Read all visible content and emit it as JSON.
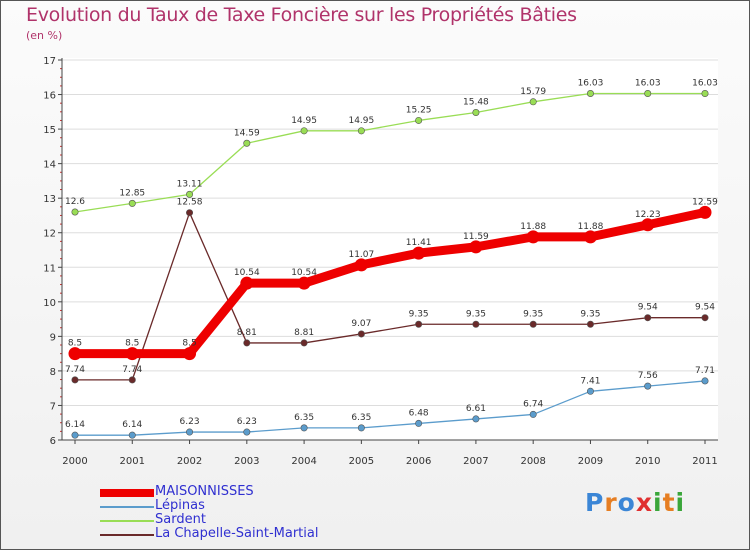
{
  "title": "Evolution du Taux de Taxe Foncière sur les Propriétés Bâties",
  "unit_label": "(en %)",
  "logo": {
    "text": "Proxiti",
    "colors": [
      "#3b86d6",
      "#e67e22",
      "#3b86d6",
      "#e03030",
      "#3aa63a",
      "#e67e22",
      "#3aa63a"
    ]
  },
  "chart_data": {
    "type": "line",
    "title": "Evolution du Taux de Taxe Foncière sur les Propriétés Bâties",
    "ylabel": "(en %)",
    "xlabel": "",
    "x": [
      "2000",
      "2001",
      "2002",
      "2003",
      "2004",
      "2005",
      "2006",
      "2007",
      "2008",
      "2009",
      "2010",
      "2011"
    ],
    "ylim": [
      6,
      17
    ],
    "yticks": [
      6,
      7,
      8,
      9,
      10,
      11,
      12,
      13,
      14,
      15,
      16,
      17
    ],
    "legend_position": "bottom-left",
    "series": [
      {
        "name": "MAISONNISSES",
        "color": "#ee0000",
        "values": [
          8.5,
          8.5,
          8.5,
          10.54,
          10.54,
          11.07,
          11.41,
          11.59,
          11.88,
          11.88,
          12.23,
          12.59
        ],
        "labels": [
          "8.5",
          "8.5",
          "8.5",
          "10.54",
          "10.54",
          "11.07",
          "11.41",
          "11.59",
          "11.88",
          "11.88",
          "12.23",
          "12.59"
        ]
      },
      {
        "name": "Lépinas",
        "color": "#5b9ccc",
        "values": [
          6.14,
          6.14,
          6.23,
          6.23,
          6.35,
          6.35,
          6.48,
          6.61,
          6.74,
          7.41,
          7.56,
          7.71
        ],
        "labels": [
          "6.14",
          "6.14",
          "6.23",
          "6.23",
          "6.35",
          "6.35",
          "6.48",
          "6.61",
          "6.74",
          "7.41",
          "7.56",
          "7.71"
        ]
      },
      {
        "name": "Sardent",
        "color": "#99dd55",
        "values": [
          12.6,
          12.85,
          13.11,
          14.59,
          14.95,
          14.95,
          15.25,
          15.48,
          15.79,
          16.03,
          16.03,
          16.03
        ],
        "labels": [
          "12.6",
          "12.85",
          "13.11",
          "14.59",
          "14.95",
          "14.95",
          "15.25",
          "15.48",
          "15.79",
          "16.03",
          "16.03",
          "16.03"
        ]
      },
      {
        "name": "La Chapelle-Saint-Martial",
        "color": "#6a2a2a",
        "values": [
          7.74,
          7.74,
          12.58,
          8.81,
          8.81,
          9.07,
          9.35,
          9.35,
          9.35,
          9.35,
          9.54,
          9.54
        ],
        "labels": [
          "7.74",
          "7.74",
          "12.58",
          "8.81",
          "8.81",
          "9.07",
          "9.35",
          "9.35",
          "9.35",
          "9.35",
          "9.54",
          "9.54"
        ]
      }
    ]
  }
}
